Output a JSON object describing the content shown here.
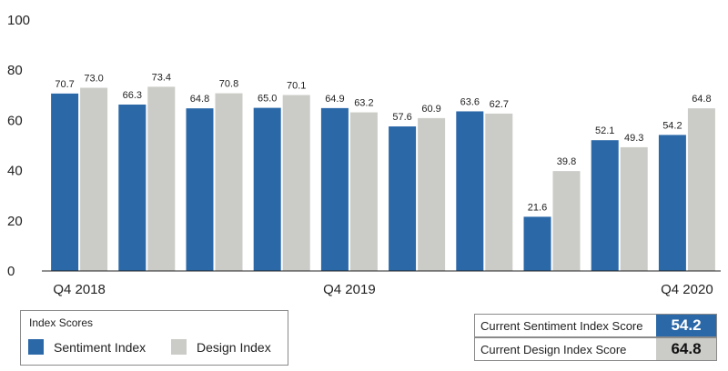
{
  "colors": {
    "sentiment": "#2b68a8",
    "design": "#cbcbc7",
    "baseline": "#222222"
  },
  "chart_data": {
    "type": "bar",
    "ylim": [
      0,
      100
    ],
    "yticks": [
      0,
      20,
      40,
      60,
      80,
      100
    ],
    "grid": false,
    "category_labels": [
      "Q4 2018",
      "",
      "",
      "",
      "Q4 2019",
      "",
      "",
      "",
      "",
      "Q4 2020"
    ],
    "series": [
      {
        "name": "Sentiment Index",
        "values": [
          70.7,
          66.3,
          64.8,
          65.0,
          64.9,
          57.6,
          63.6,
          21.6,
          52.1,
          54.2
        ]
      },
      {
        "name": "Design Index",
        "values": [
          73.0,
          73.4,
          70.8,
          70.1,
          63.2,
          60.9,
          62.7,
          39.8,
          49.3,
          64.8
        ]
      }
    ]
  },
  "legend": {
    "title": "Index Scores",
    "sentiment_label": "Sentiment Index",
    "design_label": "Design Index"
  },
  "scores": {
    "sentiment_label": "Current Sentiment Index Score",
    "sentiment_value": "54.2",
    "design_label": "Current Design Index Score",
    "design_value": "64.8"
  }
}
